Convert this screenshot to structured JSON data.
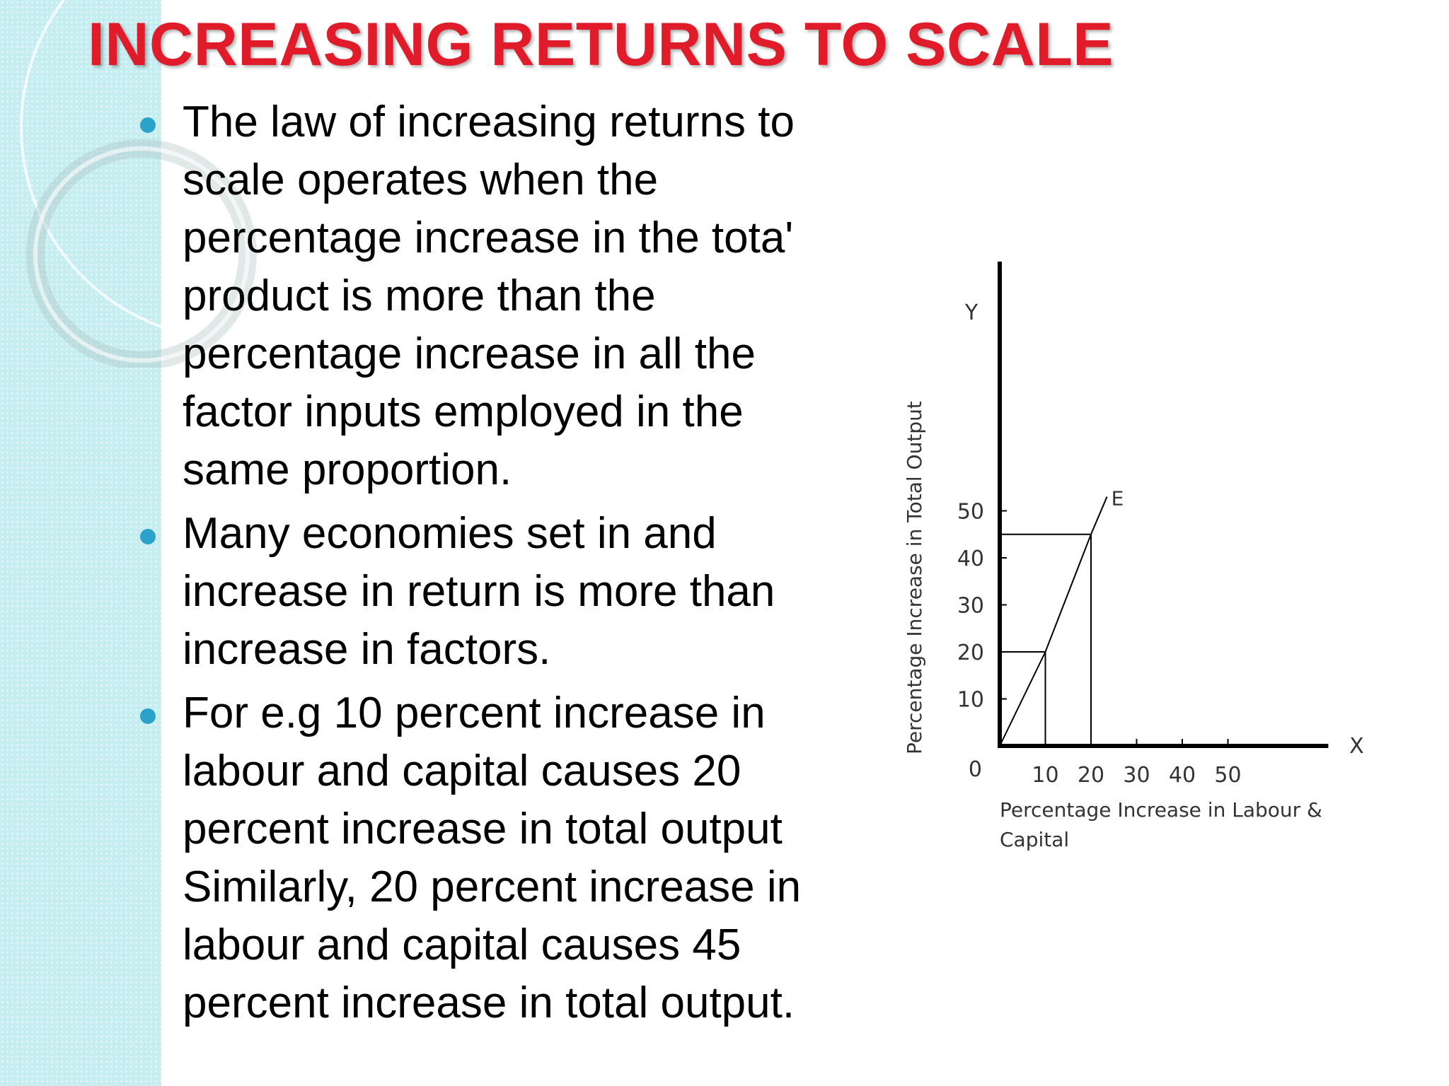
{
  "slide": {
    "title": "INCREASING RETURNS TO SCALE",
    "bullets": [
      {
        "lines": [
          "The law of increasing returns to",
          "scale operates when the",
          "percentage increase in the tota'",
          "product is more than the",
          "percentage increase in all the",
          "factor inputs employed in  the",
          "same proportion."
        ]
      },
      {
        "lines": [
          "Many economies set in and",
          "increase in return is more than",
          "increase in factors."
        ]
      },
      {
        "lines": [
          "For e.g 10 percent increase in",
          "labour and capital causes 20",
          "percent increase in total output",
          "Similarly, 20 percent increase in",
          "labour and capital causes 45",
          "percent increase in total output."
        ]
      }
    ],
    "colors": {
      "title": "#e01b2a",
      "bullet": "#2ca2c8",
      "side_band": "#c6eef1"
    }
  },
  "chart_data": {
    "type": "line",
    "ylabel": "Percentage Increase in Total Output",
    "xlabel_lines": [
      "Percentage Increase in Labour &",
      "Capital"
    ],
    "y_axis_letter": "Y",
    "x_axis_letter": "X",
    "origin_label": "0",
    "x_ticks": [
      10,
      20,
      30,
      40,
      50
    ],
    "y_ticks": [
      10,
      20,
      30,
      40,
      50
    ],
    "xlim": [
      0,
      72
    ],
    "ylim": [
      0,
      98
    ],
    "series": [
      {
        "label": "E",
        "x": [
          0,
          10,
          20,
          23.5
        ],
        "y": [
          0,
          20,
          45,
          53
        ]
      }
    ],
    "reference_points": [
      {
        "x": 10,
        "y": 20
      },
      {
        "x": 20,
        "y": 45
      }
    ],
    "grid": false
  }
}
